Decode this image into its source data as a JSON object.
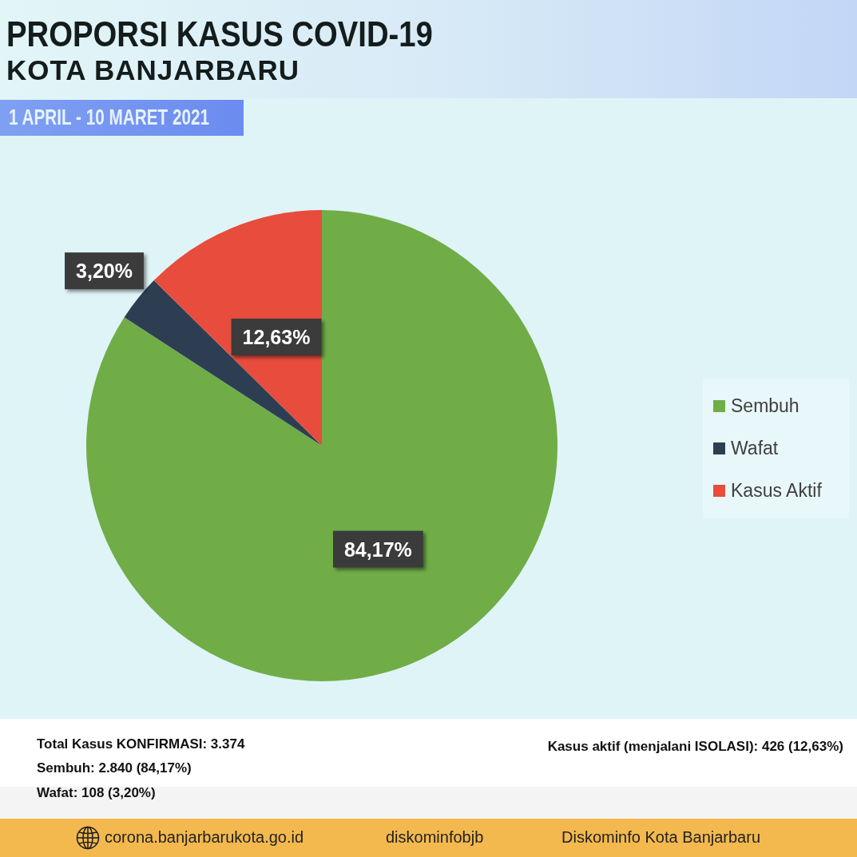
{
  "chart_data": {
    "type": "pie",
    "title": "PROPORSI KASUS COVID-19\nKOTA BANJARBARU",
    "subtitle": "1 APRIL - 10 MARET 2021",
    "categories": [
      "Sembuh",
      "Wafat",
      "Kasus Aktif"
    ],
    "values": [
      84.17,
      3.2,
      12.63
    ],
    "colors": [
      "#70ad47",
      "#2d3e52",
      "#e74c3c"
    ],
    "value_labels": [
      "84,17%",
      "3,20%",
      "12,63%"
    ],
    "legend": "right",
    "annotations": [
      "Total Kasus KONFIRMASI: 3.374",
      "Sembuh: 2.840 (84,17%)",
      "Wafat: 108 (3,20%)",
      "Kasus aktif (menjalani ISOLASI): 426 (12,63%)",
      "corona.banjarbarukota.go.id",
      "diskominfobjb",
      "Diskominfo Kota Banjarbaru"
    ]
  }
}
